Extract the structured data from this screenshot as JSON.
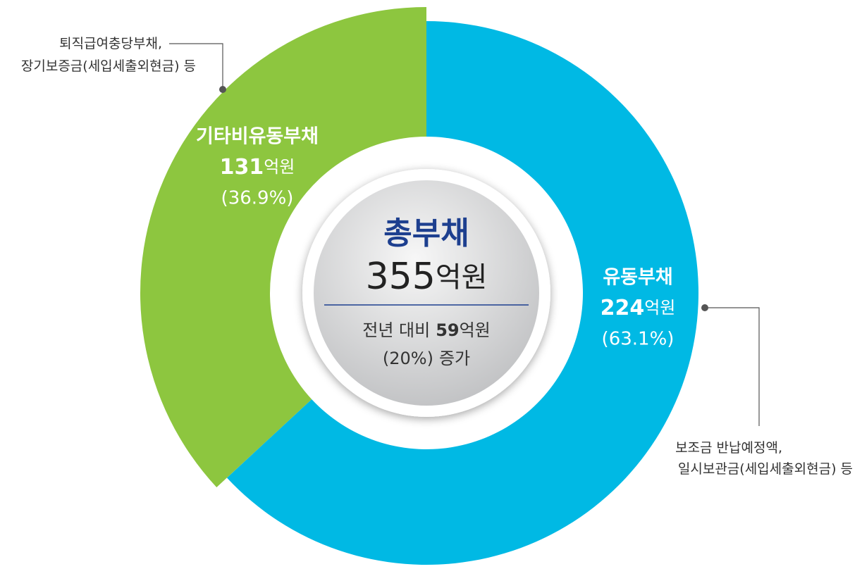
{
  "chart_data": {
    "type": "donut",
    "categories": [
      "유동부채",
      "기타비유동부채"
    ],
    "values": [
      224,
      131
    ],
    "unit": "억원",
    "percents": [
      63.1,
      36.9
    ],
    "percent_labels": [
      "(63.1%)",
      "(36.9%)"
    ],
    "colors": [
      "#00b9e4",
      "#8dc63f"
    ],
    "center": {
      "title": "총부채",
      "total": 355,
      "unit": "억원",
      "change_prefix": "전년 대비",
      "change": 59,
      "change_unit": "억원",
      "change_pct_label": "(20%)",
      "change_suffix": "증가"
    },
    "annotations": [
      [
        "보조금 반납예정액,",
        "일시보관금(세입세출외현금) 등"
      ],
      [
        "퇴직급여충당부채,",
        "장기보증금(세입세출외현금) 등"
      ]
    ]
  }
}
